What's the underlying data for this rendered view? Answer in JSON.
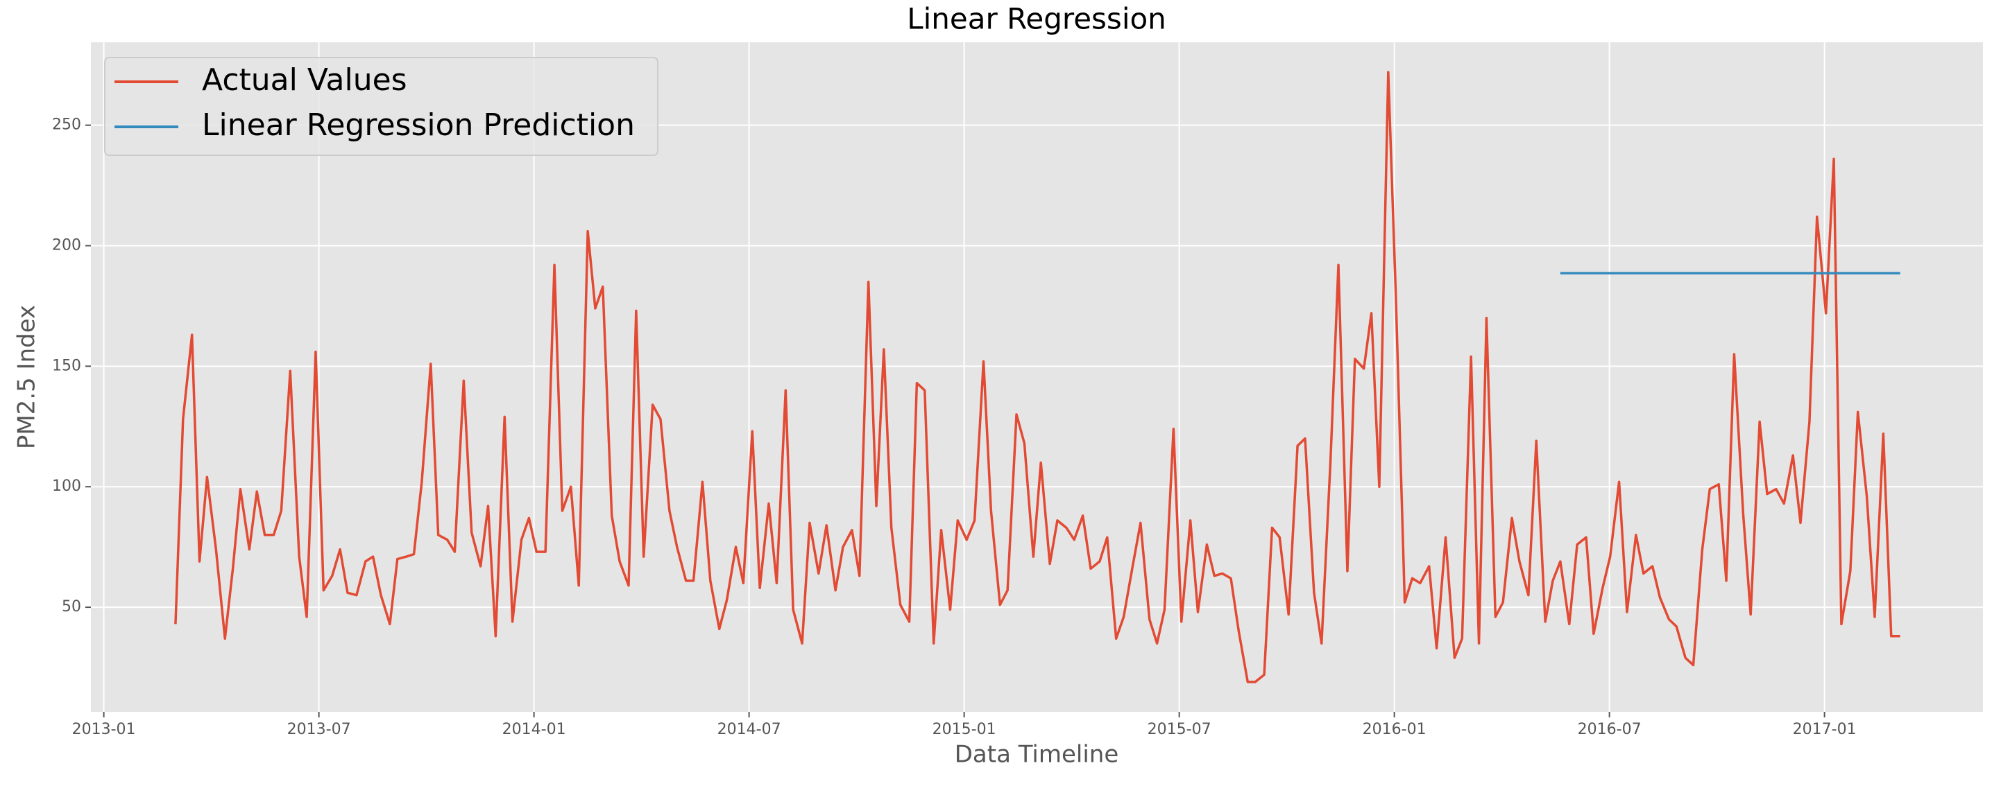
{
  "chart_data": {
    "type": "line",
    "title": "Linear Regression",
    "x_label": "Data Timeline",
    "y_label": "PM2.5 Index",
    "xlim": [
      -0.36,
      52.42
    ],
    "ylim": [
      6.6,
      284.4
    ],
    "xticks": [
      {
        "value": 0,
        "label": "2013-01"
      },
      {
        "value": 6,
        "label": "2013-07"
      },
      {
        "value": 12,
        "label": "2014-01"
      },
      {
        "value": 18,
        "label": "2014-07"
      },
      {
        "value": 24,
        "label": "2015-01"
      },
      {
        "value": 30,
        "label": "2015-07"
      },
      {
        "value": 36,
        "label": "2016-01"
      },
      {
        "value": 42,
        "label": "2016-07"
      },
      {
        "value": 48,
        "label": "2017-01"
      }
    ],
    "yticks": [
      50,
      100,
      150,
      200,
      250
    ],
    "grid": true,
    "legend": "upper left",
    "series": [
      {
        "name": "Actual Values",
        "color": "#e24a33",
        "x": [
          2.0,
          2.21,
          2.46,
          2.67,
          2.88,
          3.13,
          3.38,
          3.6,
          3.81,
          4.06,
          4.27,
          4.49,
          4.74,
          4.95,
          5.2,
          5.45,
          5.66,
          5.91,
          6.13,
          6.37,
          6.59,
          6.8,
          7.05,
          7.3,
          7.51,
          7.73,
          7.98,
          8.19,
          8.44,
          8.65,
          8.87,
          9.12,
          9.33,
          9.58,
          9.79,
          10.04,
          10.26,
          10.51,
          10.72,
          10.93,
          11.18,
          11.4,
          11.65,
          11.86,
          12.07,
          12.32,
          12.57,
          12.79,
          13.03,
          13.25,
          13.5,
          13.71,
          13.92,
          14.17,
          14.39,
          14.64,
          14.85,
          15.06,
          15.31,
          15.53,
          15.78,
          15.99,
          16.24,
          16.45,
          16.7,
          16.92,
          17.17,
          17.38,
          17.63,
          17.84,
          18.09,
          18.3,
          18.55,
          18.77,
          19.02,
          19.23,
          19.48,
          19.69,
          19.94,
          20.16,
          20.41,
          20.62,
          20.87,
          21.08,
          21.33,
          21.55,
          21.76,
          21.97,
          22.22,
          22.47,
          22.68,
          22.9,
          23.15,
          23.36,
          23.61,
          23.82,
          24.07,
          24.29,
          24.54,
          24.75,
          25.0,
          25.21,
          25.46,
          25.68,
          25.93,
          26.14,
          26.39,
          26.6,
          26.85,
          27.07,
          27.31,
          27.53,
          27.78,
          27.99,
          28.24,
          28.45,
          28.7,
          28.92,
          29.17,
          29.38,
          29.59,
          29.84,
          30.06,
          30.31,
          30.52,
          30.77,
          30.98,
          31.2,
          31.44,
          31.66,
          31.91,
          32.12,
          32.37,
          32.59,
          32.8,
          33.05,
          33.3,
          33.51,
          33.76,
          33.97,
          34.22,
          34.44,
          34.69,
          34.9,
          35.15,
          35.36,
          35.58,
          35.83,
          36.04,
          36.29,
          36.5,
          36.72,
          36.97,
          37.18,
          37.43,
          37.68,
          37.89,
          38.14,
          38.36,
          38.57,
          38.82,
          39.03,
          39.28,
          39.49,
          39.74,
          39.96,
          40.21,
          40.42,
          40.63,
          40.88,
          41.1,
          41.35,
          41.56,
          41.81,
          42.02,
          42.27,
          42.49,
          42.74,
          42.95,
          43.2,
          43.41,
          43.66,
          43.87,
          44.12,
          44.34,
          44.59,
          44.8,
          45.05,
          45.26,
          45.48,
          45.73,
          45.94,
          46.19,
          46.4,
          46.65,
          46.87,
          47.12,
          47.33,
          47.58,
          47.79,
          48.04,
          48.26,
          48.47,
          48.72,
          48.93,
          49.18,
          49.4,
          49.64,
          49.86,
          50.11
        ],
        "values": [
          43,
          128,
          163,
          69,
          104,
          74,
          37,
          66,
          99,
          74,
          98,
          80,
          80,
          90,
          148,
          71,
          46,
          156,
          57,
          63,
          74,
          56,
          55,
          69,
          71,
          55,
          43,
          70,
          71,
          72,
          102,
          151,
          80,
          78,
          73,
          144,
          81,
          67,
          92,
          38,
          129,
          44,
          78,
          87,
          73,
          73,
          192,
          90,
          100,
          59,
          206,
          174,
          183,
          88,
          69,
          59,
          173,
          71,
          134,
          128,
          90,
          75,
          61,
          61,
          102,
          61,
          41,
          53,
          75,
          60,
          123,
          58,
          93,
          60,
          140,
          49,
          35,
          85,
          64,
          84,
          57,
          75,
          82,
          63,
          185,
          92,
          157,
          83,
          51,
          44,
          143,
          140,
          35,
          82,
          49,
          86,
          78,
          86,
          152,
          90,
          51,
          57,
          130,
          118,
          71,
          110,
          68,
          86,
          83,
          78,
          88,
          66,
          69,
          79,
          37,
          46,
          67,
          85,
          45,
          35,
          49,
          124,
          44,
          86,
          48,
          76,
          63,
          64,
          62,
          40,
          19,
          19,
          22,
          83,
          79,
          47,
          117,
          120,
          56,
          35,
          111,
          192,
          65,
          153,
          149,
          172,
          100,
          272,
          180,
          52,
          62,
          60,
          67,
          33,
          79,
          29,
          37,
          154,
          35,
          170,
          46,
          52,
          87,
          69,
          55,
          119,
          44,
          61,
          69,
          43,
          76,
          79,
          39,
          58,
          71,
          102,
          48,
          80,
          64,
          67,
          54,
          45,
          42,
          29,
          26,
          74,
          99,
          101,
          61,
          155,
          89,
          47,
          127,
          97,
          99,
          93,
          113,
          85,
          127,
          212,
          172,
          236,
          43,
          65,
          131,
          96,
          46,
          122,
          38,
          38
        ]
      },
      {
        "name": "Linear Regression Prediction",
        "color": "#348abd",
        "x": [
          40.63,
          50.11
        ],
        "values": [
          188.6,
          188.6
        ]
      }
    ]
  }
}
